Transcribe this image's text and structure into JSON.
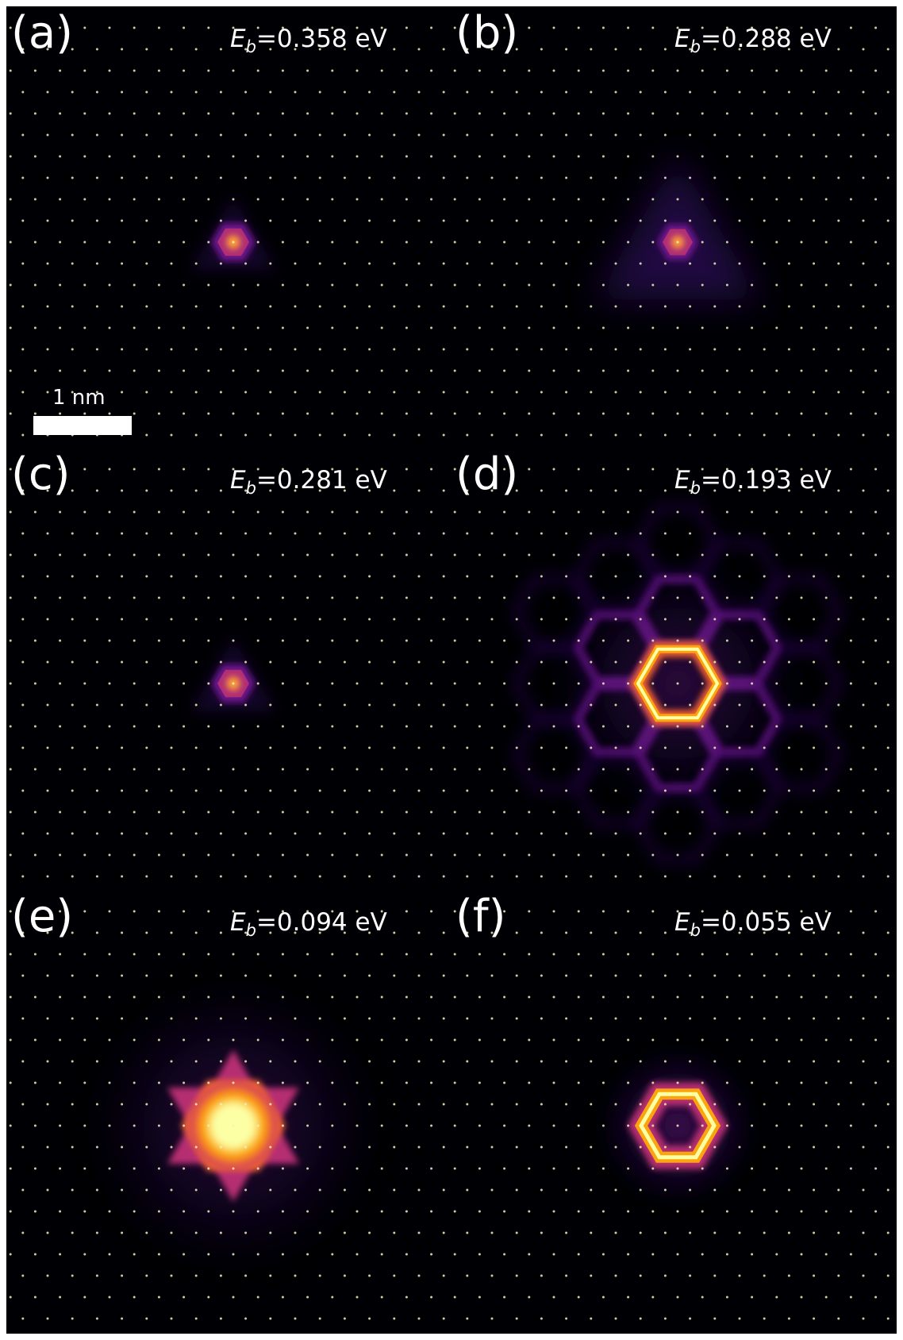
{
  "scale_bar": {
    "label": "1 nm"
  },
  "colormap": {
    "stops": [
      "#000004",
      "#2c0b57",
      "#6b178a",
      "#b52f72",
      "#ec5f36",
      "#fca40e",
      "#fcffa4"
    ]
  },
  "lattice_dot_color": "#f3f0c0",
  "panels": [
    {
      "letter": "(a)",
      "symbol": "E",
      "subscript": "b",
      "value": "=0.358 eV",
      "pattern": "small-core"
    },
    {
      "letter": "(b)",
      "symbol": "E",
      "subscript": "b",
      "value": "=0.288 eV",
      "pattern": "triangular-halo"
    },
    {
      "letter": "(c)",
      "symbol": "E",
      "subscript": "b",
      "value": "=0.281 eV",
      "pattern": "small-core"
    },
    {
      "letter": "(d)",
      "symbol": "E",
      "subscript": "b",
      "value": "=0.193 eV",
      "pattern": "hexagon-ring-lattice"
    },
    {
      "letter": "(e)",
      "symbol": "E",
      "subscript": "b",
      "value": "=0.094 eV",
      "pattern": "bright-star"
    },
    {
      "letter": "(f)",
      "symbol": "E",
      "subscript": "b",
      "value": "=0.055 eV",
      "pattern": "hexagon-ring"
    }
  ]
}
